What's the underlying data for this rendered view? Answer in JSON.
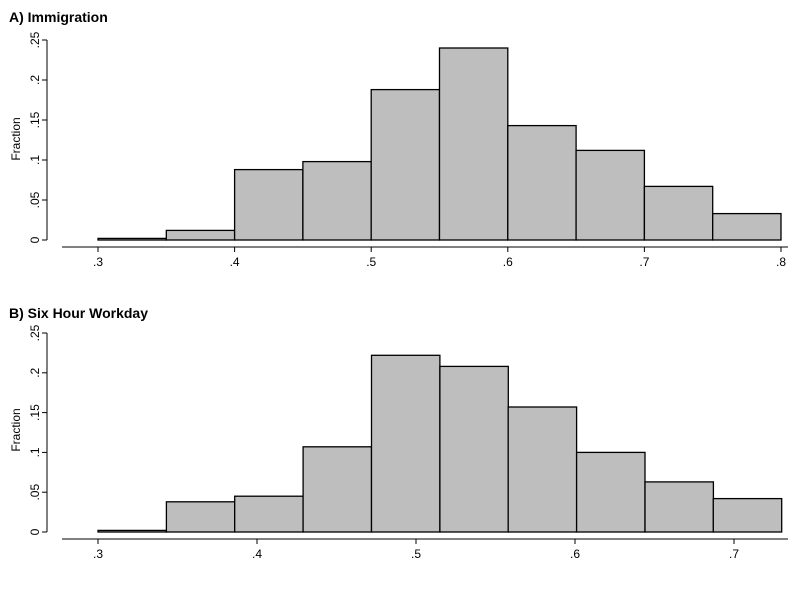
{
  "chart_data": [
    {
      "type": "bar",
      "title": "A) Immigration",
      "ylabel": "Fraction",
      "xlabel": "",
      "bin_width": 0.05,
      "bins": [
        {
          "x0": 0.3,
          "x1": 0.35,
          "value": 0.002
        },
        {
          "x0": 0.35,
          "x1": 0.4,
          "value": 0.012
        },
        {
          "x0": 0.4,
          "x1": 0.45,
          "value": 0.088
        },
        {
          "x0": 0.45,
          "x1": 0.5,
          "value": 0.098
        },
        {
          "x0": 0.5,
          "x1": 0.55,
          "value": 0.188
        },
        {
          "x0": 0.55,
          "x1": 0.6,
          "value": 0.24
        },
        {
          "x0": 0.6,
          "x1": 0.65,
          "value": 0.143
        },
        {
          "x0": 0.65,
          "x1": 0.7,
          "value": 0.112
        },
        {
          "x0": 0.7,
          "x1": 0.75,
          "value": 0.067
        },
        {
          "x0": 0.75,
          "x1": 0.8,
          "value": 0.033
        }
      ],
      "xticks": [
        0.3,
        0.4,
        0.5,
        0.6,
        0.7,
        0.8
      ],
      "xtick_labels": [
        ".3",
        ".4",
        ".5",
        ".6",
        ".7",
        ".8"
      ],
      "yticks": [
        0,
        0.05,
        0.1,
        0.15,
        0.2,
        0.25
      ],
      "ytick_labels": [
        "0",
        ".05",
        ".1",
        ".15",
        ".2",
        ".25"
      ],
      "ylim": [
        0,
        0.25
      ],
      "xlim": [
        0.3,
        0.8
      ],
      "grid": false,
      "bar_color": "#bebebe"
    },
    {
      "type": "bar",
      "title": "B) Six Hour Workday",
      "ylabel": "Fraction",
      "xlabel": "",
      "bin_width": 0.043,
      "bins": [
        {
          "x0": 0.3,
          "x1": 0.343,
          "value": 0.002
        },
        {
          "x0": 0.343,
          "x1": 0.386,
          "value": 0.038
        },
        {
          "x0": 0.386,
          "x1": 0.429,
          "value": 0.045
        },
        {
          "x0": 0.429,
          "x1": 0.472,
          "value": 0.107
        },
        {
          "x0": 0.472,
          "x1": 0.515,
          "value": 0.222
        },
        {
          "x0": 0.515,
          "x1": 0.558,
          "value": 0.208
        },
        {
          "x0": 0.558,
          "x1": 0.601,
          "value": 0.157
        },
        {
          "x0": 0.601,
          "x1": 0.644,
          "value": 0.1
        },
        {
          "x0": 0.644,
          "x1": 0.687,
          "value": 0.063
        },
        {
          "x0": 0.687,
          "x1": 0.73,
          "value": 0.042
        }
      ],
      "xticks": [
        0.3,
        0.4,
        0.5,
        0.6,
        0.7
      ],
      "xtick_labels": [
        ".3",
        ".4",
        ".5",
        ".6",
        ".7"
      ],
      "yticks": [
        0,
        0.05,
        0.1,
        0.15,
        0.2,
        0.25
      ],
      "ytick_labels": [
        "0",
        ".05",
        ".1",
        ".15",
        ".2",
        ".25"
      ],
      "ylim": [
        0,
        0.25
      ],
      "xlim": [
        0.3,
        0.73
      ],
      "grid": false,
      "bar_color": "#bebebe"
    }
  ]
}
